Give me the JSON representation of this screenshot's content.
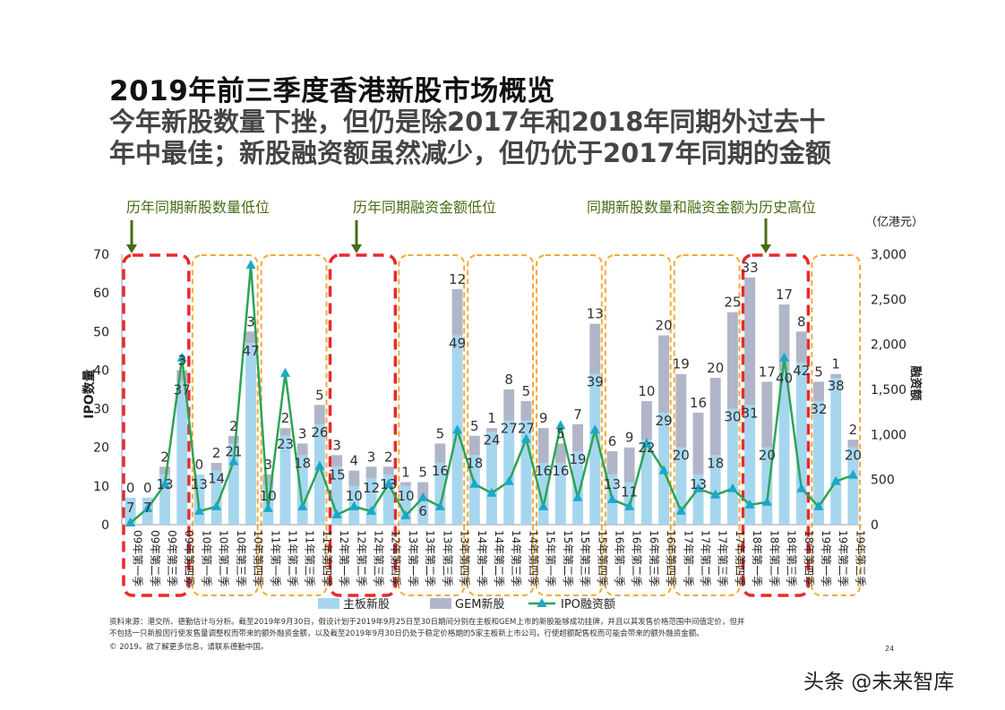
{
  "header": {
    "title": "2019年前三季度香港新股市场概览",
    "subtitle_line1": "今年新股数量下挫，但仍是除2017年和2018年同期外过去十",
    "subtitle_line2": "年中最佳；新股融资额虽然减少，但仍优于2017年同期的金额"
  },
  "callouts": {
    "low_count": "历年同期新股数量低位",
    "low_amount": "历年同期融资金额低位",
    "high": "同期新股数量和融资金额为历史高位"
  },
  "footer": {
    "source_line1": "资料来源：港交所、德勤估计与分析。截至2019年9月30日，假设计划于2019年9月25日至30日期间分别在主板和GEM上市的新股能够成功挂牌，并且以其发售价格范围中间值定价，但并",
    "source_line2": "不包括一只新股因行使发售量调整权而带来的额外融资金额，以及截至2019年9月30日仍处于稳定价格期的5家主板新上市公司，行使超额配售权而可能会带来的额外融资金额。",
    "copyright": "© 2019。欲了解更多信息，请联系德勤中国。",
    "page_number": "24"
  },
  "watermark": "头条 @未来智库",
  "chart_data": {
    "type": "bar",
    "y_left_label": "IPO数量",
    "y_right_label": "融资额",
    "y_right_unit": "（亿港元）",
    "y_left_ticks": [
      "0",
      "10",
      "20",
      "30",
      "40",
      "50",
      "60",
      "70"
    ],
    "y_right_ticks": [
      "0",
      "500",
      "1,000",
      "1,500",
      "2,000",
      "2,500",
      "3,000"
    ],
    "ylim_left": [
      0,
      70
    ],
    "ylim_right": [
      0,
      3000
    ],
    "categories": [
      "09年第一季",
      "09年第二季",
      "09年第三季",
      "09年第四季",
      "10年第一季",
      "10年第二季",
      "10年第三季",
      "10年第四季",
      "11年第一季",
      "11年第二季",
      "11年第三季",
      "11年第四季",
      "12年第一季",
      "12年第二季",
      "12年第三季",
      "12年第四季",
      "13年第一季",
      "13年第二季",
      "13年第三季",
      "13年第四季",
      "14年第一季",
      "14年第二季",
      "14年第三季",
      "14年第四季",
      "15年第一季",
      "15年第二季",
      "15年第三季",
      "15年第四季",
      "16年第一季",
      "16年第二季",
      "16年第三季",
      "16年第四季",
      "17年第一季",
      "17年第二季",
      "17年第三季",
      "17年第四季",
      "18年第一季",
      "18年第二季",
      "18年第三季",
      "18年第四季",
      "19年第一季",
      "19年第二季",
      "19年第三季"
    ],
    "series": [
      {
        "name": "主板新股",
        "values": [
          7,
          7,
          13,
          37,
          13,
          14,
          21,
          47,
          10,
          23,
          18,
          26,
          15,
          10,
          12,
          13,
          10,
          6,
          16,
          49,
          18,
          24,
          27,
          27,
          16,
          16,
          19,
          39,
          13,
          11,
          22,
          29,
          20,
          13,
          18,
          30,
          31,
          20,
          40,
          42,
          32,
          38,
          20
        ]
      },
      {
        "name": "GEM新股",
        "values": [
          0,
          0,
          2,
          3,
          0,
          2,
          2,
          3,
          3,
          2,
          3,
          5,
          3,
          4,
          3,
          2,
          1,
          5,
          5,
          12,
          5,
          1,
          8,
          5,
          9,
          5,
          7,
          13,
          6,
          9,
          10,
          20,
          19,
          16,
          20,
          25,
          33,
          17,
          17,
          8,
          5,
          1,
          2
        ]
      },
      {
        "name": "IPO融资额",
        "axis": "right",
        "values": [
          20,
          180,
          450,
          1850,
          150,
          200,
          700,
          2880,
          180,
          1680,
          200,
          650,
          110,
          200,
          150,
          450,
          100,
          300,
          200,
          1050,
          450,
          350,
          480,
          950,
          200,
          1100,
          300,
          1050,
          280,
          200,
          900,
          600,
          150,
          400,
          330,
          400,
          220,
          250,
          1850,
          400,
          200,
          480,
          550
        ]
      }
    ],
    "legend_position": "bottom",
    "colors": {
      "main_board": "#a6d6ee",
      "gem": "#b0b6c7",
      "ipo_line": "#2ca455",
      "ipo_marker": "#1aa8c8",
      "highlight_red": "#e8282d",
      "highlight_orange": "#f5a936",
      "arrow": "#4a6b14"
    }
  }
}
